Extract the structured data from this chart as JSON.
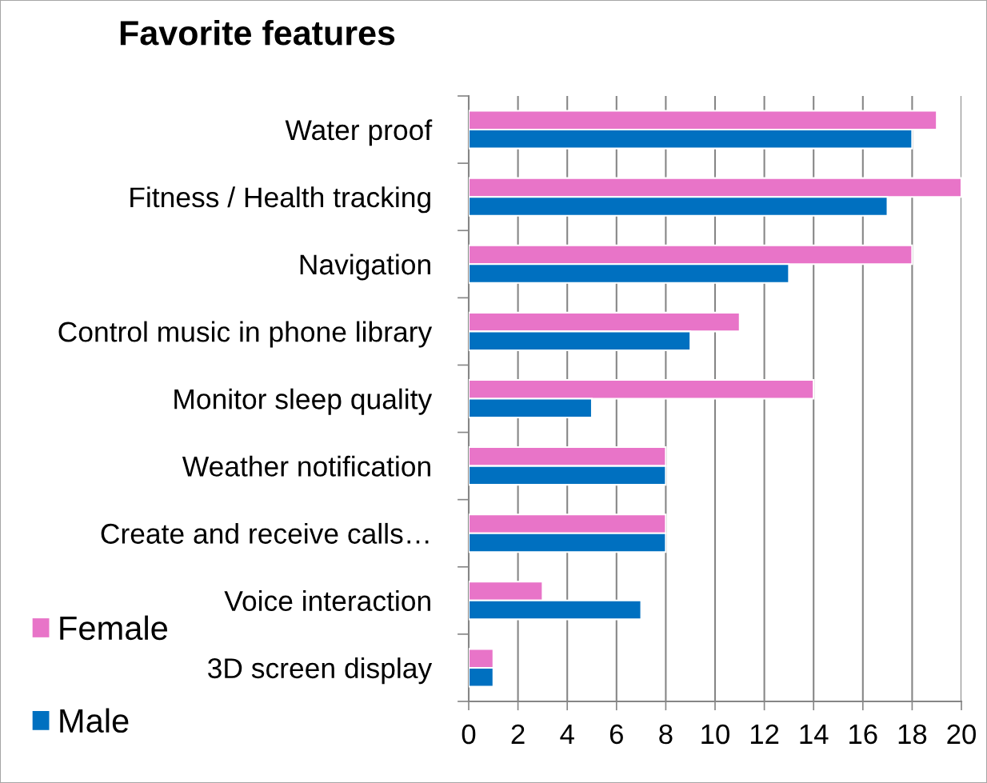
{
  "chart_data": {
    "type": "bar",
    "orientation": "horizontal",
    "title": "Favorite features",
    "categories": [
      "Water proof",
      "Fitness / Health tracking",
      "Navigation",
      "Control music in phone library",
      "Monitor sleep quality",
      "Weather notification",
      "Create and receive calls…",
      "Voice interaction",
      "3D screen display"
    ],
    "series": [
      {
        "name": "Female",
        "color": "#e874c8",
        "values": [
          19,
          20,
          18,
          11,
          14,
          8,
          8,
          3,
          1
        ]
      },
      {
        "name": "Male",
        "color": "#0070c0",
        "values": [
          18,
          17,
          13,
          9,
          5,
          8,
          8,
          7,
          1
        ]
      }
    ],
    "xlim": [
      0,
      20
    ],
    "xticks": [
      0,
      2,
      4,
      6,
      8,
      10,
      12,
      14,
      16,
      18,
      20
    ],
    "grid": "x",
    "legend": "bottom left"
  }
}
